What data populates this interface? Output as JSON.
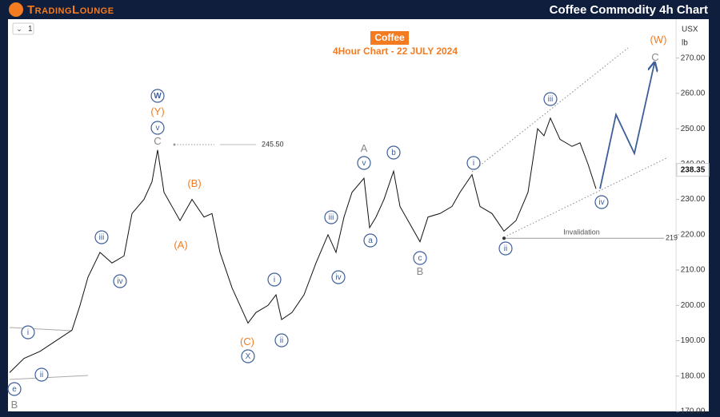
{
  "header": {
    "logo": "TradingLounge",
    "title": "Coffee Commodity 4h Chart"
  },
  "chart_data": {
    "type": "line",
    "title": "Coffee",
    "subtitle": "4Hour Chart - 22 JULY 2024",
    "toolbar": "1",
    "currency": "USX",
    "unit": "lb",
    "xlim": [
      0,
      835
    ],
    "ylim": [
      170,
      281
    ],
    "yticks": [
      {
        "value": 170,
        "label": "170.00"
      },
      {
        "value": 180,
        "label": "180.00"
      },
      {
        "value": 190,
        "label": "190.00"
      },
      {
        "value": 200,
        "label": "200.00"
      },
      {
        "value": 210,
        "label": "210.00"
      },
      {
        "value": 220,
        "label": "220.00"
      },
      {
        "value": 230,
        "label": "230.00"
      },
      {
        "value": 240,
        "label": "240.00"
      },
      {
        "value": 250,
        "label": "250.00"
      },
      {
        "value": 260,
        "label": "260.00"
      },
      {
        "value": 270,
        "label": "270.00"
      }
    ],
    "series": [
      {
        "color": "#111111",
        "x": [
          2,
          20,
          40,
          60,
          80,
          90,
          100,
          115,
          130,
          145,
          155,
          170,
          180,
          187,
          195,
          205,
          215,
          230,
          245,
          255,
          265,
          280,
          290,
          300,
          310,
          325,
          335,
          342,
          355,
          370,
          385,
          400,
          410,
          420,
          430,
          445,
          452,
          460,
          470,
          482,
          490,
          500,
          515,
          525,
          540,
          555,
          565,
          580,
          590,
          605,
          620,
          635,
          650,
          662,
          670,
          678,
          690,
          705,
          715,
          725,
          735
        ],
        "values": [
          181,
          185,
          187,
          190,
          193,
          200,
          208,
          215,
          212,
          214,
          226,
          230,
          235,
          244,
          232,
          228,
          224,
          230,
          225,
          226,
          215,
          205,
          200,
          195,
          198,
          200,
          203,
          196,
          198,
          203,
          212,
          220,
          215,
          225,
          232,
          236,
          222,
          225,
          230,
          238,
          228,
          224,
          218,
          225,
          226,
          228,
          232,
          237,
          228,
          226,
          221,
          224,
          232,
          250,
          248,
          253,
          247,
          245,
          246,
          240,
          233
        ]
      },
      {
        "color": "#3d5f99",
        "x": [
          740,
          760,
          783,
          808
        ],
        "values": [
          233,
          254,
          243,
          268.5
        ]
      }
    ],
    "last_price": {
      "value": 238.35,
      "label": "238.35"
    },
    "levels": [
      {
        "value": 245.5,
        "label": "245.50"
      },
      {
        "value": 219,
        "label": "219",
        "note": "Invalidation"
      }
    ],
    "annotations": [
      {
        "text": "W",
        "color": "#3d5f99",
        "circled": true
      },
      {
        "text": "(Y)",
        "color": "#f47b20",
        "circled": false
      },
      {
        "text": "v",
        "color": "#3d5f99",
        "circled": true
      },
      {
        "text": "C",
        "color": "#888888",
        "circled": false
      },
      {
        "text": "(B)",
        "color": "#f47b20",
        "circled": false
      },
      {
        "text": "(A)",
        "color": "#f47b20",
        "circled": false
      },
      {
        "text": "iii",
        "color": "#3d5f99",
        "circled": true
      },
      {
        "text": "iv",
        "color": "#3d5f99",
        "circled": true
      },
      {
        "text": "i",
        "color": "#3d5f99",
        "circled": true
      },
      {
        "text": "ii",
        "color": "#3d5f99",
        "circled": true
      },
      {
        "text": "e",
        "color": "#3d5f99",
        "circled": true
      },
      {
        "text": "B",
        "color": "#888888",
        "circled": false
      },
      {
        "text": "(C)",
        "color": "#f47b20",
        "circled": false
      },
      {
        "text": "X",
        "color": "#3d5f99",
        "circled": true
      },
      {
        "text": "i",
        "color": "#3d5f99",
        "circled": true
      },
      {
        "text": "ii",
        "color": "#3d5f99",
        "circled": true
      },
      {
        "text": "iii",
        "color": "#3d5f99",
        "circled": true
      },
      {
        "text": "iv",
        "color": "#3d5f99",
        "circled": true
      },
      {
        "text": "A",
        "color": "#888888",
        "circled": false
      },
      {
        "text": "v",
        "color": "#3d5f99",
        "circled": true
      },
      {
        "text": "b",
        "color": "#3d5f99",
        "circled": true
      },
      {
        "text": "a",
        "color": "#3d5f99",
        "circled": true
      },
      {
        "text": "c",
        "color": "#3d5f99",
        "circled": true
      },
      {
        "text": "B",
        "color": "#888888",
        "circled": false
      },
      {
        "text": "i",
        "color": "#3d5f99",
        "circled": true
      },
      {
        "text": "iii",
        "color": "#3d5f99",
        "circled": true
      },
      {
        "text": "ii",
        "color": "#3d5f99",
        "circled": true
      },
      {
        "text": "iv",
        "color": "#3d5f99",
        "circled": true
      },
      {
        "text": "(W)",
        "color": "#f47b20",
        "circled": false
      },
      {
        "text": "C",
        "color": "#888888",
        "circled": false
      }
    ]
  }
}
